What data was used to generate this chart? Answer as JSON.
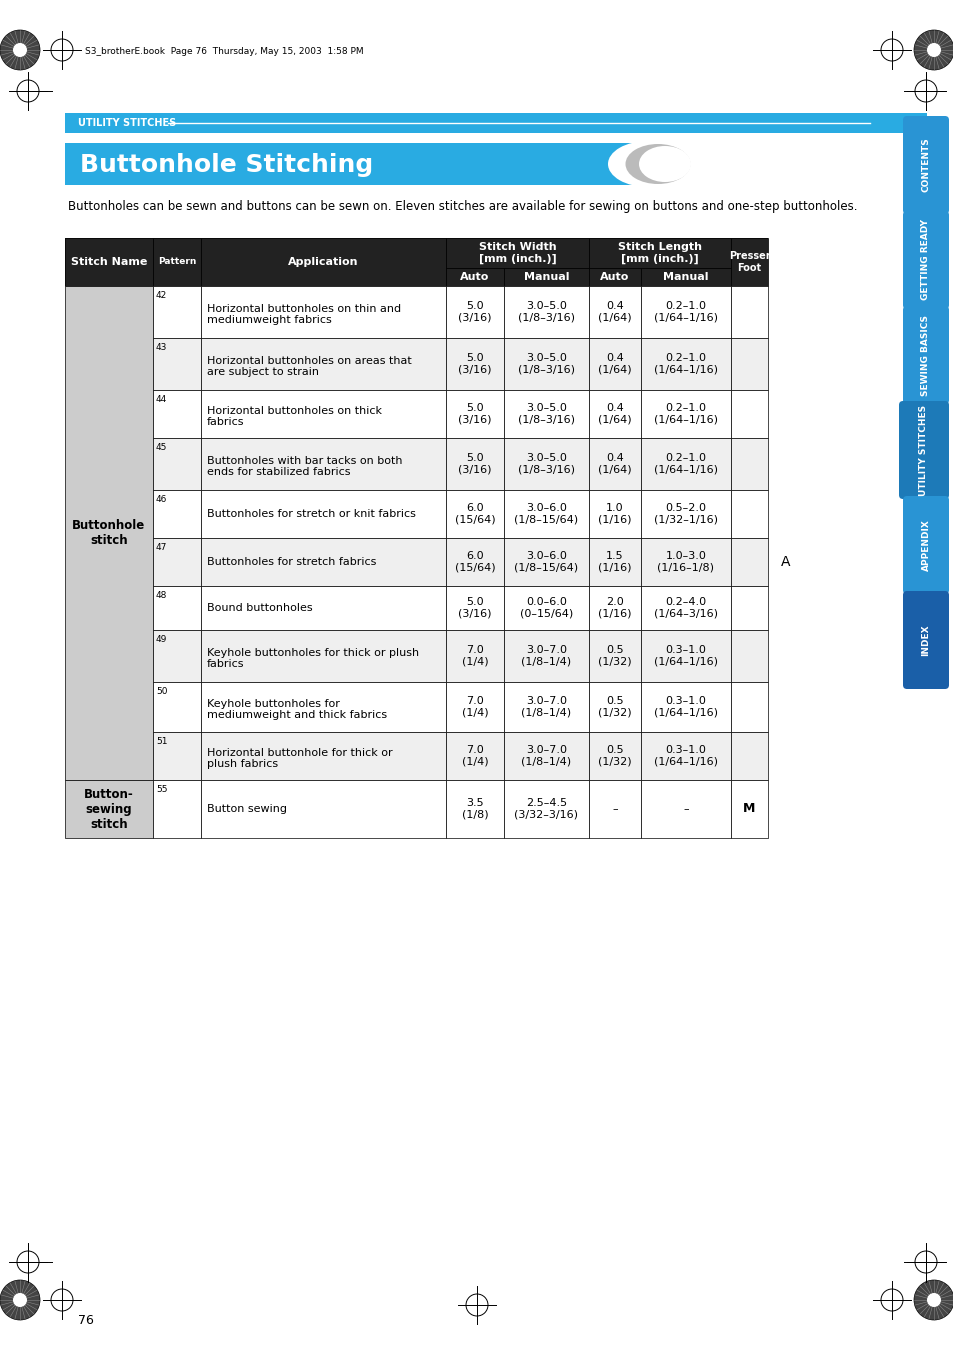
{
  "page_header": "S3_brotherE.book  Page 76  Thursday, May 15, 2003  1:58 PM",
  "section_label": "UTILITY STITCHES",
  "title": "Buttonhole Stitching",
  "intro_text": "Buttonholes can be sewn and buttons can be sewn on. Eleven stitches are available for sewing on buttons and one-step buttonholes.",
  "table_rows": [
    {
      "pattern_no": "42",
      "application": "Horizontal buttonholes on thin and\nmediumweight fabrics",
      "sw_auto": "5.0\n(3/16)",
      "sw_manual": "3.0–5.0\n(1/8–3/16)",
      "sl_auto": "0.4\n(1/64)",
      "sl_manual": "0.2–1.0\n(1/64–1/16)",
      "presser": ""
    },
    {
      "pattern_no": "43",
      "application": "Horizontal buttonholes on areas that\nare subject to strain",
      "sw_auto": "5.0\n(3/16)",
      "sw_manual": "3.0–5.0\n(1/8–3/16)",
      "sl_auto": "0.4\n(1/64)",
      "sl_manual": "0.2–1.0\n(1/64–1/16)",
      "presser": ""
    },
    {
      "pattern_no": "44",
      "application": "Horizontal buttonholes on thick\nfabrics",
      "sw_auto": "5.0\n(3/16)",
      "sw_manual": "3.0–5.0\n(1/8–3/16)",
      "sl_auto": "0.4\n(1/64)",
      "sl_manual": "0.2–1.0\n(1/64–1/16)",
      "presser": ""
    },
    {
      "pattern_no": "45",
      "application": "Buttonholes with bar tacks on both\nends for stabilized fabrics",
      "sw_auto": "5.0\n(3/16)",
      "sw_manual": "3.0–5.0\n(1/8–3/16)",
      "sl_auto": "0.4\n(1/64)",
      "sl_manual": "0.2–1.0\n(1/64–1/16)",
      "presser": ""
    },
    {
      "pattern_no": "46",
      "application": "Buttonholes for stretch or knit fabrics",
      "sw_auto": "6.0\n(15/64)",
      "sw_manual": "3.0–6.0\n(1/8–15/64)",
      "sl_auto": "1.0\n(1/16)",
      "sl_manual": "0.5–2.0\n(1/32–1/16)",
      "presser": ""
    },
    {
      "pattern_no": "47",
      "application": "Buttonholes for stretch fabrics",
      "sw_auto": "6.0\n(15/64)",
      "sw_manual": "3.0–6.0\n(1/8–15/64)",
      "sl_auto": "1.5\n(1/16)",
      "sl_manual": "1.0–3.0\n(1/16–1/8)",
      "presser": ""
    },
    {
      "pattern_no": "48",
      "application": "Bound buttonholes",
      "sw_auto": "5.0\n(3/16)",
      "sw_manual": "0.0–6.0\n(0–15/64)",
      "sl_auto": "2.0\n(1/16)",
      "sl_manual": "0.2–4.0\n(1/64–3/16)",
      "presser": ""
    },
    {
      "pattern_no": "49",
      "application": "Keyhole buttonholes for thick or plush\nfabrics",
      "sw_auto": "7.0\n(1/4)",
      "sw_manual": "3.0–7.0\n(1/8–1/4)",
      "sl_auto": "0.5\n(1/32)",
      "sl_manual": "0.3–1.0\n(1/64–1/16)",
      "presser": ""
    },
    {
      "pattern_no": "50",
      "application": "Keyhole buttonholes for\nmediumweight and thick fabrics",
      "sw_auto": "7.0\n(1/4)",
      "sw_manual": "3.0–7.0\n(1/8–1/4)",
      "sl_auto": "0.5\n(1/32)",
      "sl_manual": "0.3–1.0\n(1/64–1/16)",
      "presser": ""
    },
    {
      "pattern_no": "51",
      "application": "Horizontal buttonhole for thick or\nplush fabrics",
      "sw_auto": "7.0\n(1/4)",
      "sw_manual": "3.0–7.0\n(1/8–1/4)",
      "sl_auto": "0.5\n(1/32)",
      "sl_manual": "0.3–1.0\n(1/64–1/16)",
      "presser": ""
    },
    {
      "pattern_no": "55",
      "application": "Button sewing",
      "sw_auto": "3.5\n(1/8)",
      "sw_manual": "2.5–4.5\n(3/32–3/16)",
      "sl_auto": "–",
      "sl_manual": "–",
      "presser": "M"
    }
  ],
  "side_tabs": [
    "CONTENTS",
    "GETTING READY",
    "SEWING BASICS",
    "UTILITY STITCHES",
    "APPENDIX",
    "INDEX"
  ],
  "active_tab_idx": 3,
  "tab_colors": [
    "#2994d4",
    "#2994d4",
    "#2994d4",
    "#2994d4",
    "#2994d4",
    "#2994d4"
  ],
  "active_tab_color": "#1a78b8",
  "header_color": "#29ABE2",
  "table_header_bg": "#222222",
  "table_row_colors": [
    "#ffffff",
    "#efefef"
  ],
  "stitch_name_col_bg": "#cccccc",
  "page_number": "76",
  "note_A": "A",
  "banner_color": "#29ABE2",
  "title_bg_color": "#29ABE2"
}
